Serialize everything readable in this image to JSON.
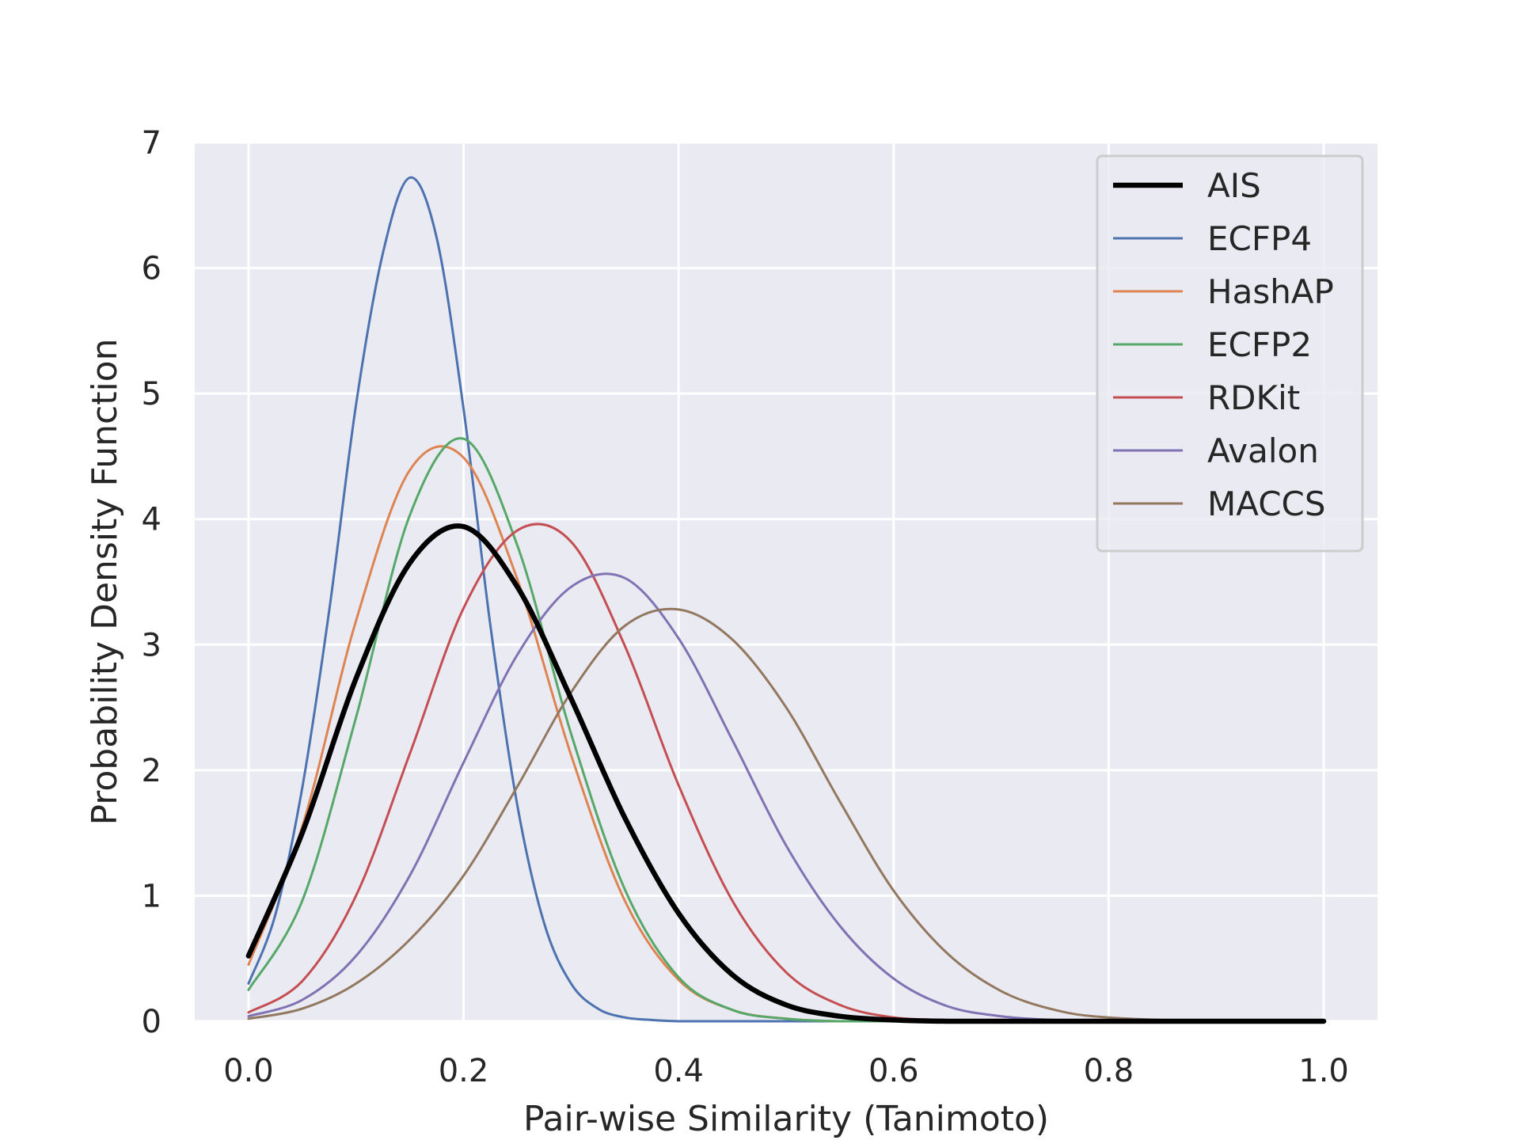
{
  "chart_data": {
    "type": "line",
    "title": "",
    "xlabel": "Pair-wise Similarity (Tanimoto)",
    "ylabel": "Probability Density Function",
    "xlim": [
      -0.05,
      1.05
    ],
    "ylim": [
      0,
      7
    ],
    "xticks": [
      0.0,
      0.2,
      0.4,
      0.6,
      0.8,
      1.0
    ],
    "xtick_labels": [
      "0.0",
      "0.2",
      "0.4",
      "0.6",
      "0.8",
      "1.0"
    ],
    "yticks": [
      0,
      1,
      2,
      3,
      4,
      5,
      6,
      7
    ],
    "ytick_labels": [
      "0",
      "1",
      "2",
      "3",
      "4",
      "5",
      "6",
      "7"
    ],
    "grid": true,
    "legend_position": "top-right",
    "background_color": "#eaeaf2",
    "grid_color": "#ffffff",
    "series": [
      {
        "name": "AIS",
        "color": "#000000",
        "linewidth": "thick",
        "x": [
          0.0,
          0.05,
          0.1,
          0.15,
          0.2,
          0.25,
          0.3,
          0.35,
          0.4,
          0.45,
          0.5,
          0.55,
          0.6,
          0.65,
          0.7,
          0.75,
          0.8,
          0.85,
          0.9,
          0.95,
          1.0
        ],
        "y": [
          0.52,
          1.5,
          2.73,
          3.65,
          3.94,
          3.46,
          2.57,
          1.62,
          0.86,
          0.37,
          0.13,
          0.04,
          0.01,
          0.0,
          0.0,
          0.0,
          0.0,
          0.0,
          0.0,
          0.0,
          0.0
        ]
      },
      {
        "name": "ECFP4",
        "color": "#4c72b0",
        "linewidth": "thin",
        "x": [
          0.0,
          0.025,
          0.05,
          0.075,
          0.1,
          0.125,
          0.15,
          0.175,
          0.2,
          0.225,
          0.25,
          0.275,
          0.3,
          0.325,
          0.35,
          0.375,
          0.4,
          0.45,
          0.5,
          0.6,
          0.7,
          0.8,
          0.9,
          1.0
        ],
        "y": [
          0.3,
          0.85,
          1.86,
          3.27,
          4.91,
          6.12,
          6.72,
          6.24,
          4.88,
          3.15,
          1.72,
          0.78,
          0.3,
          0.1,
          0.03,
          0.01,
          0.0,
          0.0,
          0.0,
          0.0,
          0.0,
          0.0,
          0.0,
          0.0
        ]
      },
      {
        "name": "HashAP",
        "color": "#dd8452",
        "linewidth": "thin",
        "x": [
          0.0,
          0.05,
          0.1,
          0.15,
          0.2,
          0.25,
          0.3,
          0.35,
          0.4,
          0.45,
          0.5,
          0.55,
          0.6,
          0.7,
          0.8,
          0.9,
          1.0
        ],
        "y": [
          0.45,
          1.55,
          3.19,
          4.39,
          4.49,
          3.52,
          2.12,
          0.96,
          0.33,
          0.09,
          0.02,
          0.0,
          0.0,
          0.0,
          0.0,
          0.0,
          0.0
        ]
      },
      {
        "name": "ECFP2",
        "color": "#55a868",
        "linewidth": "thin",
        "x": [
          0.0,
          0.05,
          0.1,
          0.15,
          0.2,
          0.25,
          0.3,
          0.35,
          0.4,
          0.45,
          0.5,
          0.55,
          0.6,
          0.7,
          0.8,
          0.9,
          1.0
        ],
        "y": [
          0.25,
          0.96,
          2.42,
          4.03,
          4.64,
          3.79,
          2.29,
          1.05,
          0.35,
          0.09,
          0.02,
          0.0,
          0.0,
          0.0,
          0.0,
          0.0,
          0.0
        ]
      },
      {
        "name": "RDKit",
        "color": "#c44e52",
        "linewidth": "thin",
        "x": [
          0.0,
          0.05,
          0.1,
          0.15,
          0.2,
          0.25,
          0.3,
          0.35,
          0.4,
          0.45,
          0.5,
          0.55,
          0.6,
          0.65,
          0.7,
          0.8,
          0.9,
          1.0
        ],
        "y": [
          0.07,
          0.32,
          1.0,
          2.13,
          3.29,
          3.91,
          3.82,
          2.99,
          1.88,
          0.96,
          0.39,
          0.13,
          0.03,
          0.01,
          0.0,
          0.0,
          0.0,
          0.0
        ]
      },
      {
        "name": "Avalon",
        "color": "#8172b3",
        "linewidth": "thin",
        "x": [
          0.0,
          0.05,
          0.1,
          0.15,
          0.2,
          0.25,
          0.3,
          0.35,
          0.4,
          0.45,
          0.5,
          0.55,
          0.6,
          0.65,
          0.7,
          0.75,
          0.8,
          0.9,
          1.0
        ],
        "y": [
          0.04,
          0.17,
          0.52,
          1.16,
          2.06,
          2.92,
          3.46,
          3.53,
          3.05,
          2.24,
          1.4,
          0.76,
          0.34,
          0.12,
          0.04,
          0.01,
          0.0,
          0.0,
          0.0
        ]
      },
      {
        "name": "MACCS",
        "color": "#937860",
        "linewidth": "thin",
        "x": [
          0.0,
          0.05,
          0.1,
          0.15,
          0.2,
          0.25,
          0.3,
          0.35,
          0.4,
          0.45,
          0.5,
          0.55,
          0.6,
          0.65,
          0.7,
          0.75,
          0.8,
          0.9,
          1.0
        ],
        "y": [
          0.02,
          0.1,
          0.3,
          0.65,
          1.16,
          1.87,
          2.62,
          3.15,
          3.28,
          3.04,
          2.5,
          1.75,
          1.04,
          0.54,
          0.24,
          0.09,
          0.03,
          0.0,
          0.0
        ]
      }
    ]
  }
}
